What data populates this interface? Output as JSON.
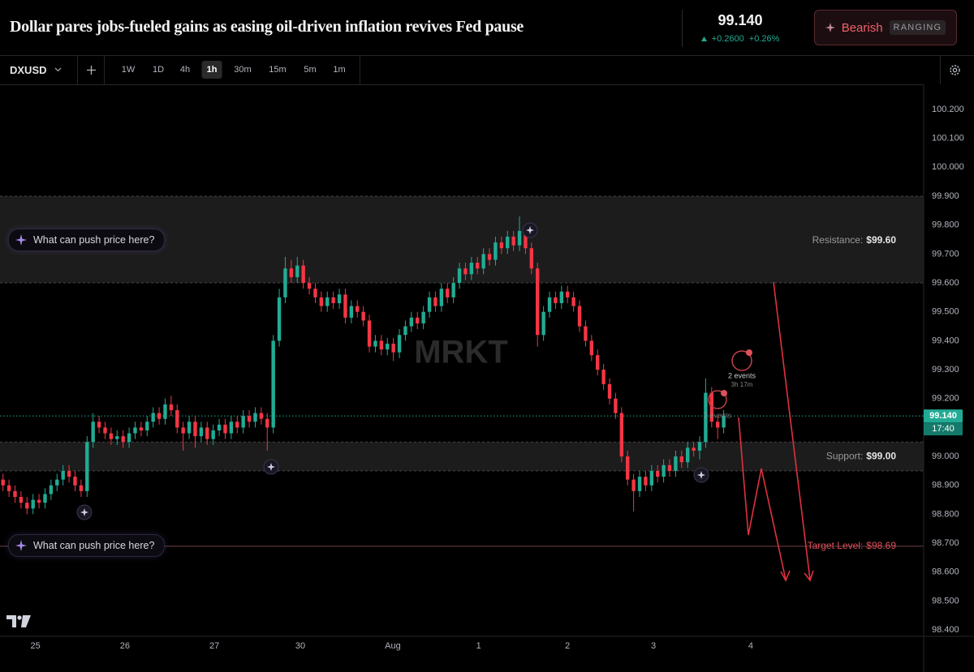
{
  "header": {
    "title": "Dollar pares jobs-fueled gains as easing oil-driven inflation revives Fed pause",
    "price": "99.140",
    "change": "+0.2600",
    "change_pct": "+0.26%",
    "sentiment": "Bearish",
    "regime": "RANGING"
  },
  "toolbar": {
    "symbol": "DXUSD",
    "timeframes": [
      "1W",
      "1D",
      "4h",
      "1h",
      "30m",
      "15m",
      "5m",
      "1m"
    ],
    "active": 3
  },
  "prompts": [
    "What can push price here?",
    "What can push price here?"
  ],
  "chart_data": {
    "type": "candlestick",
    "watermark": "MRKT",
    "up_color": "#22ab94",
    "down_color": "#f23645",
    "grid": false,
    "open": [
      98.92,
      98.9,
      98.88,
      98.86,
      98.84,
      98.82,
      98.85,
      98.84,
      98.87,
      98.9,
      98.92,
      98.95,
      98.93,
      98.9,
      98.88,
      99.05,
      99.12,
      99.1,
      99.08,
      99.06,
      99.07,
      99.05,
      99.08,
      99.1,
      99.09,
      99.12,
      99.15,
      99.13,
      99.18,
      99.16,
      99.1,
      99.08,
      99.12,
      99.07,
      99.1,
      99.06,
      99.09,
      99.11,
      99.08,
      99.12,
      99.1,
      99.14,
      99.12,
      99.15,
      99.13,
      99.1,
      99.4,
      99.55,
      99.65,
      99.62,
      99.66,
      99.6,
      99.58,
      99.55,
      99.52,
      99.55,
      99.53,
      99.56,
      99.48,
      99.52,
      99.5,
      99.47,
      99.38,
      99.4,
      99.37,
      99.39,
      99.36,
      99.42,
      99.45,
      99.48,
      99.46,
      99.5,
      99.55,
      99.52,
      99.58,
      99.55,
      99.6,
      99.65,
      99.63,
      99.67,
      99.65,
      99.7,
      99.68,
      99.74,
      99.72,
      99.76,
      99.73,
      99.78,
      99.72,
      99.65,
      99.42,
      99.5,
      99.55,
      99.53,
      99.57,
      99.55,
      99.52,
      99.45,
      99.4,
      99.35,
      99.3,
      99.25,
      99.2,
      99.15,
      99.0,
      98.92,
      98.88,
      98.93,
      98.9,
      98.95,
      98.93,
      98.97,
      98.95,
      99.0,
      98.98,
      99.03,
      99.02,
      99.05,
      99.22,
      99.12,
      99.1
    ],
    "high": [
      98.94,
      98.92,
      98.9,
      98.88,
      98.86,
      98.87,
      98.87,
      98.89,
      98.92,
      98.94,
      98.97,
      98.97,
      98.95,
      98.92,
      99.07,
      99.15,
      99.14,
      99.12,
      99.1,
      99.09,
      99.09,
      99.1,
      99.12,
      99.12,
      99.14,
      99.17,
      99.17,
      99.2,
      99.21,
      99.18,
      99.12,
      99.14,
      99.14,
      99.12,
      99.12,
      99.11,
      99.13,
      99.13,
      99.14,
      99.14,
      99.16,
      99.16,
      99.17,
      99.17,
      99.15,
      99.42,
      99.58,
      99.69,
      99.68,
      99.69,
      99.68,
      99.62,
      99.6,
      99.57,
      99.57,
      99.57,
      99.58,
      99.58,
      99.54,
      99.54,
      99.52,
      99.49,
      99.42,
      99.42,
      99.41,
      99.41,
      99.44,
      99.47,
      99.5,
      99.5,
      99.52,
      99.57,
      99.57,
      99.6,
      99.6,
      99.62,
      99.67,
      99.67,
      99.69,
      99.69,
      99.72,
      99.72,
      99.76,
      99.76,
      99.78,
      99.78,
      99.83,
      99.8,
      99.74,
      99.67,
      99.52,
      99.57,
      99.57,
      99.59,
      99.59,
      99.57,
      99.54,
      99.47,
      99.42,
      99.37,
      99.32,
      99.27,
      99.22,
      99.17,
      99.02,
      98.94,
      98.95,
      98.95,
      98.97,
      98.97,
      98.99,
      98.99,
      99.02,
      99.02,
      99.05,
      99.05,
      99.07,
      99.27,
      99.24,
      99.14,
      99.16
    ],
    "low": [
      98.88,
      98.86,
      98.84,
      98.82,
      98.8,
      98.8,
      98.82,
      98.82,
      98.85,
      98.88,
      98.9,
      98.91,
      98.88,
      98.86,
      98.86,
      99.03,
      99.08,
      99.06,
      99.04,
      99.04,
      99.03,
      99.03,
      99.06,
      99.07,
      99.07,
      99.1,
      99.11,
      99.11,
      99.14,
      99.08,
      99.02,
      99.06,
      99.03,
      99.05,
      99.04,
      99.04,
      99.07,
      99.06,
      99.06,
      99.08,
      99.08,
      99.1,
      99.1,
      99.11,
      99.02,
      99.08,
      99.38,
      99.53,
      99.6,
      99.6,
      99.58,
      99.56,
      99.53,
      99.5,
      99.5,
      99.51,
      99.51,
      99.46,
      99.46,
      99.48,
      99.45,
      99.36,
      99.36,
      99.35,
      99.35,
      99.33,
      99.34,
      99.4,
      99.43,
      99.44,
      99.44,
      99.48,
      99.5,
      99.5,
      99.53,
      99.53,
      99.58,
      99.61,
      99.61,
      99.63,
      99.63,
      99.66,
      99.66,
      99.7,
      99.7,
      99.71,
      99.71,
      99.7,
      99.63,
      99.38,
      99.4,
      99.48,
      99.51,
      99.51,
      99.53,
      99.5,
      99.43,
      99.38,
      99.33,
      99.28,
      99.23,
      99.18,
      99.13,
      98.98,
      98.9,
      98.81,
      98.86,
      98.88,
      98.88,
      98.91,
      98.91,
      98.93,
      98.93,
      98.96,
      98.96,
      99.0,
      98.99,
      99.03,
      99.1,
      99.06,
      99.08
    ],
    "close": [
      98.9,
      98.88,
      98.86,
      98.84,
      98.82,
      98.85,
      98.84,
      98.87,
      98.9,
      98.92,
      98.95,
      98.93,
      98.9,
      98.88,
      99.05,
      99.12,
      99.1,
      99.08,
      99.06,
      99.07,
      99.05,
      99.08,
      99.1,
      99.09,
      99.12,
      99.15,
      99.13,
      99.18,
      99.16,
      99.1,
      99.08,
      99.12,
      99.07,
      99.1,
      99.06,
      99.09,
      99.11,
      99.08,
      99.12,
      99.1,
      99.14,
      99.12,
      99.15,
      99.13,
      99.1,
      99.4,
      99.55,
      99.65,
      99.62,
      99.66,
      99.6,
      99.58,
      99.55,
      99.52,
      99.55,
      99.53,
      99.56,
      99.48,
      99.52,
      99.5,
      99.47,
      99.38,
      99.4,
      99.37,
      99.39,
      99.36,
      99.42,
      99.45,
      99.48,
      99.46,
      99.5,
      99.55,
      99.52,
      99.58,
      99.55,
      99.6,
      99.65,
      99.63,
      99.67,
      99.65,
      99.7,
      99.68,
      99.74,
      99.72,
      99.76,
      99.73,
      99.78,
      99.72,
      99.65,
      99.42,
      99.5,
      99.55,
      99.53,
      99.57,
      99.55,
      99.52,
      99.45,
      99.4,
      99.35,
      99.3,
      99.25,
      99.2,
      99.15,
      99.0,
      98.92,
      98.88,
      98.93,
      98.9,
      98.95,
      98.93,
      98.97,
      98.95,
      99.0,
      98.98,
      99.03,
      99.02,
      99.05,
      99.22,
      99.12,
      99.1,
      99.14
    ],
    "ylim": [
      98.378,
      100.284
    ],
    "yticks": [
      {
        "value": 98.4,
        "label": "98.400"
      },
      {
        "value": 98.5,
        "label": "98.500"
      },
      {
        "value": 98.6,
        "label": "98.600"
      },
      {
        "value": 98.7,
        "label": "98.700"
      },
      {
        "value": 98.8,
        "label": "98.800"
      },
      {
        "value": 98.9,
        "label": "98.900"
      },
      {
        "value": 99.0,
        "label": "99.000"
      },
      {
        "value": 99.1,
        "label": "99.100"
      },
      {
        "value": 99.2,
        "label": "99.200"
      },
      {
        "value": 99.3,
        "label": "99.300"
      },
      {
        "value": 99.4,
        "label": "99.400"
      },
      {
        "value": 99.5,
        "label": "99.500"
      },
      {
        "value": 99.6,
        "label": "99.600"
      },
      {
        "value": 99.7,
        "label": "99.700"
      },
      {
        "value": 99.8,
        "label": "99.800"
      },
      {
        "value": 99.9,
        "label": "99.900"
      },
      {
        "value": 100.0,
        "label": "100.000"
      },
      {
        "value": 100.1,
        "label": "100.100"
      },
      {
        "value": 100.2,
        "label": "100.200"
      }
    ],
    "xlim": [
      -0.5,
      153.3
    ],
    "xticks": [
      {
        "value": 5.4,
        "label": "25"
      },
      {
        "value": 20.3,
        "label": "26"
      },
      {
        "value": 35.2,
        "label": "27"
      },
      {
        "value": 49.5,
        "label": "30"
      },
      {
        "value": 64.9,
        "label": "Aug"
      },
      {
        "value": 79.2,
        "label": "1"
      },
      {
        "value": 94,
        "label": "2"
      },
      {
        "value": 108.3,
        "label": "3"
      },
      {
        "value": 124.5,
        "label": "4"
      }
    ],
    "zones": [
      {
        "label": "Resistance:",
        "price_label": "$99.60",
        "from": 99.6,
        "to": 99.9,
        "label_color": "#9a9aa0"
      },
      {
        "label": "Support:",
        "price_label": "$99.00",
        "from": 98.95,
        "to": 99.05,
        "label_color": "#9a9aa0"
      }
    ],
    "target": {
      "label": "Target Level:",
      "price_label": "$98.69",
      "value": 98.69,
      "color": "#e0505a"
    },
    "last_price": {
      "value": 99.14,
      "label": "99.140",
      "countdown": "17:40"
    },
    "events": [
      {
        "label": "2 events",
        "time": "3h 17m"
      },
      {
        "label": "2 events"
      }
    ]
  }
}
